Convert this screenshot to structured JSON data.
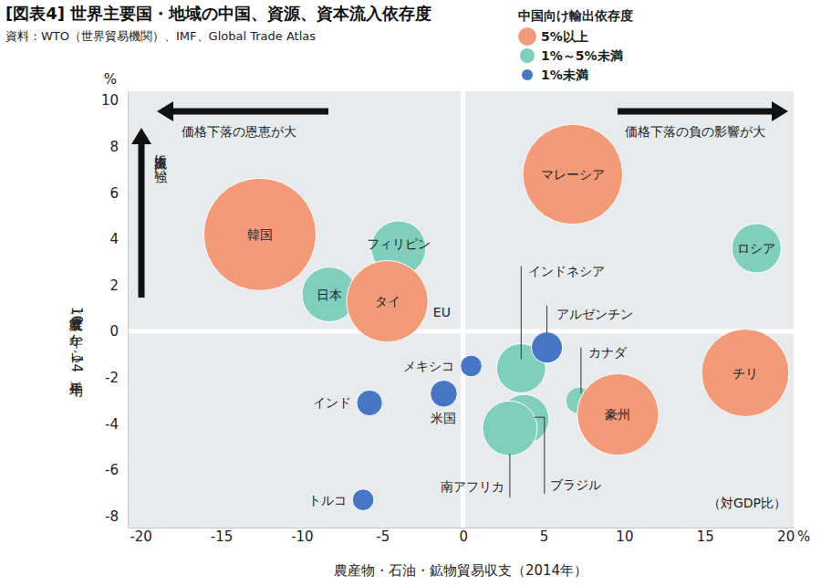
{
  "chart_data": {
    "type": "bubble",
    "title": "[図表4] 世界主要国・地域の中国、資源、資本流入依存度",
    "subtitle": "資料：WTO（世界貿易機関）、IMF、Global Trade Atlas",
    "x_label": "農産物・石油・鉱物貿易収支（2014年）",
    "y_label": "経常収支（10年から14年平均）",
    "x_unit": "%",
    "y_unit": "%",
    "annotations": [
      "価格下落の恩恵が大",
      "価格下落の負の影響が大",
      "資本流出に強い",
      "（対GDP比）"
    ],
    "legend_title": "中国向け輸出依存度",
    "legend": "top",
    "grid": false,
    "xlim": [
      -20.8,
      20.5
    ],
    "ylim": [
      -8.5,
      10.4
    ],
    "xticks": [
      -20,
      -15,
      -10,
      -5,
      0,
      5,
      10,
      15,
      20
    ],
    "yticks": [
      -8,
      -6,
      -4,
      -2,
      0,
      2,
      4,
      6,
      8,
      10
    ],
    "series": [
      {
        "name": "5%以上",
        "color": "#f39b79",
        "labels": [
          "韓国",
          "タイ",
          "マレーシア",
          "チリ",
          "豪州"
        ],
        "x": [
          -12.6,
          -4.7,
          6.8,
          17.5,
          9.6
        ],
        "values": [
          4.2,
          1.3,
          6.8,
          -1.8,
          -3.6
        ],
        "size": [
          38,
          20,
          30,
          23,
          20
        ]
      },
      {
        "name": "1%～5%未満",
        "color": "#80cfbd",
        "labels": [
          "フィリピン",
          "日本",
          "EU",
          "ロシア",
          "インドネシア",
          "カナダ",
          "ブラジル",
          "南アフリカ"
        ],
        "x": [
          -4.0,
          -8.3,
          -3.1,
          18.2,
          3.6,
          7.2,
          3.8,
          2.9
        ],
        "values": [
          3.6,
          1.6,
          0.9,
          3.6,
          -1.6,
          -3.0,
          -3.8,
          -4.2
        ],
        "size": [
          9,
          9,
          2,
          7.3,
          7.3,
          2.2,
          7.3,
          9
        ]
      },
      {
        "name": "1%未満",
        "color": "#4676c4",
        "labels": [
          "メキシコ",
          "アルゼンチン",
          "米国",
          "インド",
          "トルコ"
        ],
        "x": [
          0.5,
          5.2,
          -1.2,
          -5.8,
          -6.2
        ],
        "values": [
          -1.5,
          -0.7,
          -2.7,
          -3.1,
          -7.3
        ],
        "size": [
          1.4,
          2.9,
          2.2,
          2.0,
          1.4
        ]
      }
    ]
  }
}
